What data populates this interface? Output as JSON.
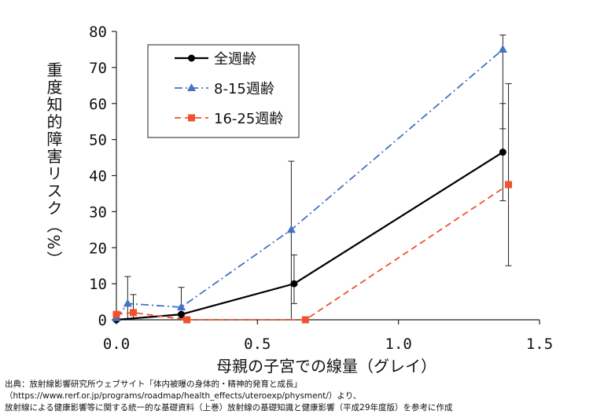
{
  "chart_data": {
    "type": "line",
    "xlabel": "母親の子宮での線量（グレイ）",
    "ylabel": "重度知的障害リスク（%）",
    "xlim": [
      0,
      1.5
    ],
    "ylim": [
      0,
      80
    ],
    "x_ticks": [
      "0.0",
      "0.5",
      "1.0",
      "1.5"
    ],
    "y_ticks": [
      "0",
      "10",
      "20",
      "30",
      "40",
      "50",
      "60",
      "70",
      "80"
    ],
    "legend_position": "top-left",
    "grid": false,
    "series": [
      {
        "name": "全週齢",
        "color": "#000000",
        "marker": "circle",
        "line": "solid",
        "points": [
          {
            "x": 0.0,
            "y": 0.0
          },
          {
            "x": 0.23,
            "y": 1.5,
            "err_low": 0.5,
            "err_high": 9.0
          },
          {
            "x": 0.63,
            "y": 10.0,
            "err_low": 4.5,
            "err_high": 18.0
          },
          {
            "x": 1.37,
            "y": 46.5,
            "err_low": 33.0,
            "err_high": 60.0
          }
        ]
      },
      {
        "name": "8-15週齢",
        "color": "#4472c4",
        "marker": "triangle",
        "line": "dashdot",
        "points": [
          {
            "x": 0.0,
            "y": 0.5
          },
          {
            "x": 0.04,
            "y": 4.5,
            "err_low": 0.0,
            "err_high": 12.0
          },
          {
            "x": 0.23,
            "y": 3.5
          },
          {
            "x": 0.62,
            "y": 25.0,
            "err_low": 0.0,
            "err_high": 44.0
          },
          {
            "x": 1.37,
            "y": 75.0,
            "err_low": 53.0,
            "err_high": 79.0
          }
        ]
      },
      {
        "name": "16-25週齢",
        "color": "#f0522e",
        "marker": "square",
        "line": "dashed",
        "points": [
          {
            "x": 0.0,
            "y": 1.5
          },
          {
            "x": 0.06,
            "y": 2.0,
            "err_low": 0.0,
            "err_high": 7.0
          },
          {
            "x": 0.25,
            "y": 0.0
          },
          {
            "x": 0.67,
            "y": 0.0
          },
          {
            "x": 1.39,
            "y": 37.5,
            "err_low": 15.0,
            "err_high": 65.5
          }
        ]
      }
    ]
  },
  "source": {
    "line1": "出典：放射線影響研究所ウェブサイト「体内被曝の身体的・精神的発育と成長」",
    "line2": "（https://www.rerf.or.jp/programs/roadmap/health_effects/uteroexp/physment/）より、",
    "line3": "放射線による健康影響等に関する統一的な基礎資料（上巻）放射線の基礎知識と健康影響（平成29年度版）を参考に作成"
  }
}
